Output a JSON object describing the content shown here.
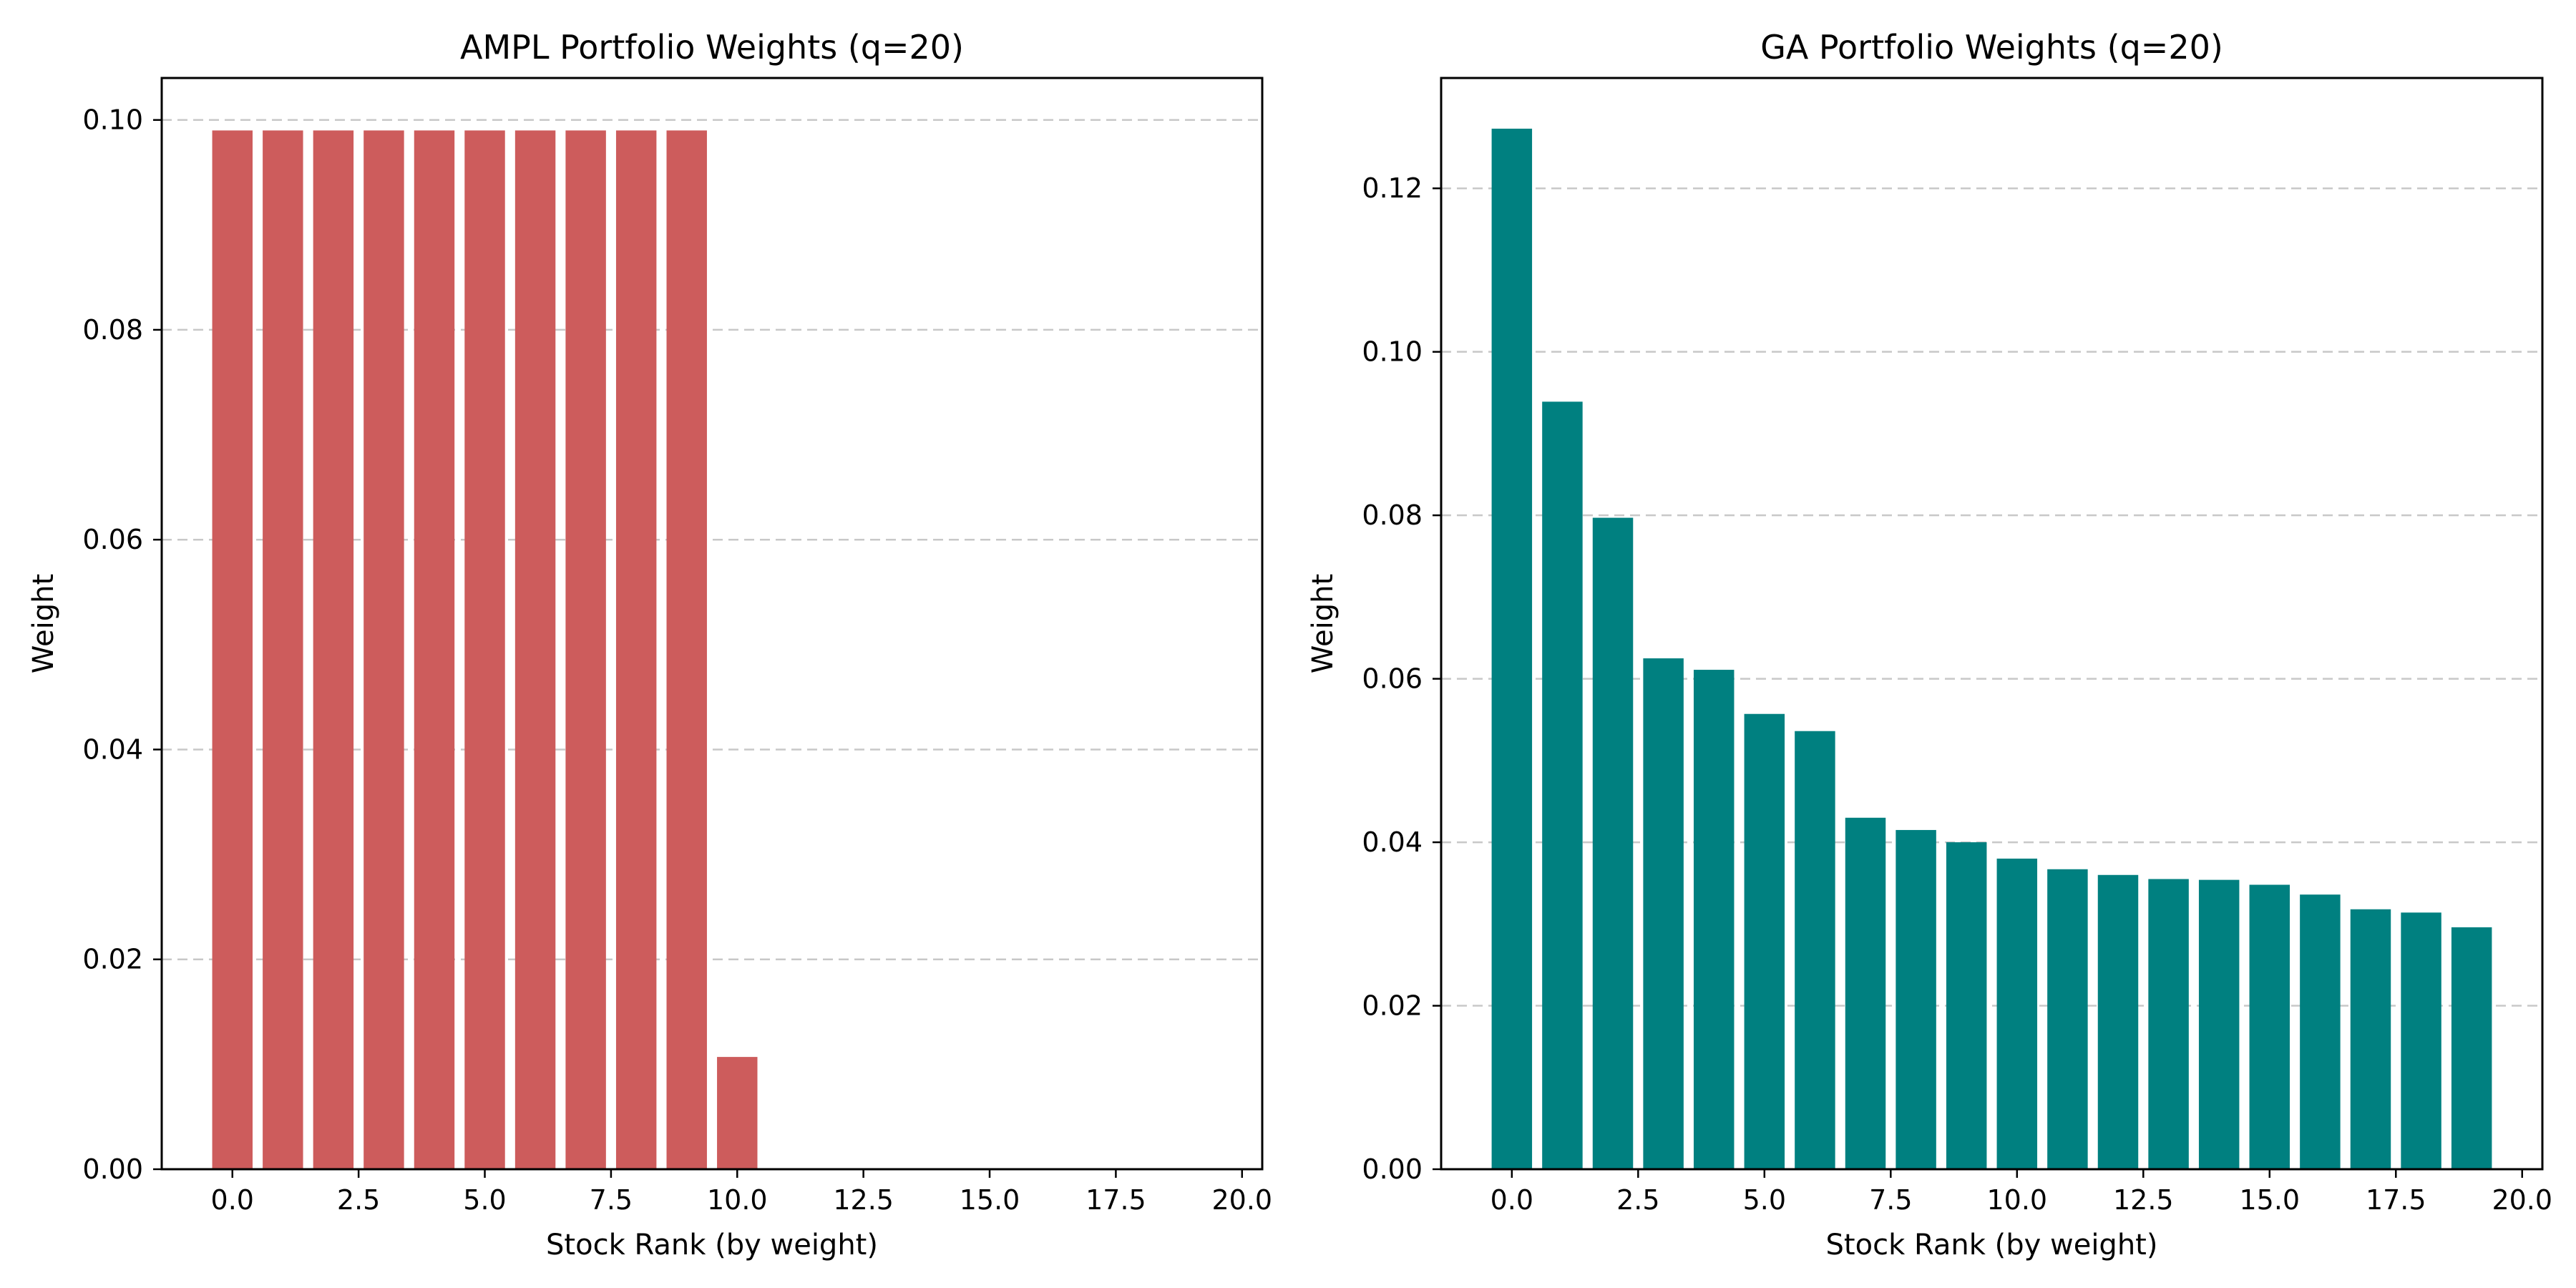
{
  "chart_data": [
    {
      "type": "bar",
      "title": "AMPL Portfolio Weights (q=20)",
      "xlabel": "Stock Rank (by weight)",
      "ylabel": "Weight",
      "x": [
        0,
        1,
        2,
        3,
        4,
        5,
        6,
        7,
        8,
        9,
        10
      ],
      "values": [
        0.099,
        0.099,
        0.099,
        0.099,
        0.099,
        0.099,
        0.099,
        0.099,
        0.099,
        0.099,
        0.0107
      ],
      "xlim": [
        -1.4,
        20.4
      ],
      "ylim": [
        0,
        0.104
      ],
      "xticks": [
        0,
        2.5,
        5,
        7.5,
        10,
        12.5,
        15,
        17.5,
        20
      ],
      "xtick_labels": [
        "0.0",
        "2.5",
        "5.0",
        "7.5",
        "10.0",
        "12.5",
        "15.0",
        "17.5",
        "20.0"
      ],
      "yticks": [
        0,
        0.02,
        0.04,
        0.06,
        0.08,
        0.1
      ],
      "ytick_labels": [
        "0.00",
        "0.02",
        "0.04",
        "0.06",
        "0.08",
        "0.10"
      ],
      "grid": "y-dashed",
      "color": "#cd5c5c"
    },
    {
      "type": "bar",
      "title": "GA Portfolio Weights (q=20)",
      "xlabel": "Stock Rank (by weight)",
      "ylabel": "Weight",
      "x": [
        0,
        1,
        2,
        3,
        4,
        5,
        6,
        7,
        8,
        9,
        10,
        11,
        12,
        13,
        14,
        15,
        16,
        17,
        18,
        19
      ],
      "values": [
        0.1273,
        0.0939,
        0.0797,
        0.0625,
        0.0611,
        0.0557,
        0.0536,
        0.043,
        0.0415,
        0.04,
        0.038,
        0.0367,
        0.036,
        0.0355,
        0.0354,
        0.0348,
        0.0336,
        0.0318,
        0.0314,
        0.0296
      ],
      "xlim": [
        -1.4,
        20.4
      ],
      "ylim": [
        0,
        0.1335
      ],
      "xticks": [
        0,
        2.5,
        5,
        7.5,
        10,
        12.5,
        15,
        17.5,
        20
      ],
      "xtick_labels": [
        "0.0",
        "2.5",
        "5.0",
        "7.5",
        "10.0",
        "12.5",
        "15.0",
        "17.5",
        "20.0"
      ],
      "yticks": [
        0,
        0.02,
        0.04,
        0.06,
        0.08,
        0.1,
        0.12
      ],
      "ytick_labels": [
        "0.00",
        "0.02",
        "0.04",
        "0.06",
        "0.08",
        "0.10",
        "0.12"
      ],
      "grid": "y-dashed",
      "color": "#008080"
    }
  ]
}
